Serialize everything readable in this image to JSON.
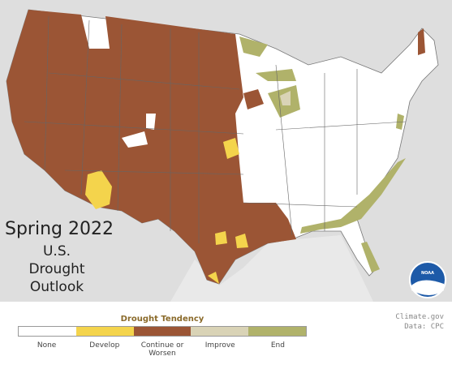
{
  "title": {
    "heading": "Spring 2022",
    "lines": [
      "U.S.",
      "Drought",
      "Outlook"
    ]
  },
  "legend": {
    "title": "Drought Tendency",
    "items": [
      {
        "label": "None",
        "color": "#ffffff"
      },
      {
        "label": "Develop",
        "color": "#f4d44c"
      },
      {
        "label": "Continue or Worsen",
        "color": "#9b5535"
      },
      {
        "label": "Improve",
        "color": "#d9d3b6"
      },
      {
        "label": "End",
        "color": "#b0b26a"
      }
    ]
  },
  "credit": [
    "Climate.gov",
    "Data: CPC"
  ],
  "logo": "NOAA"
}
